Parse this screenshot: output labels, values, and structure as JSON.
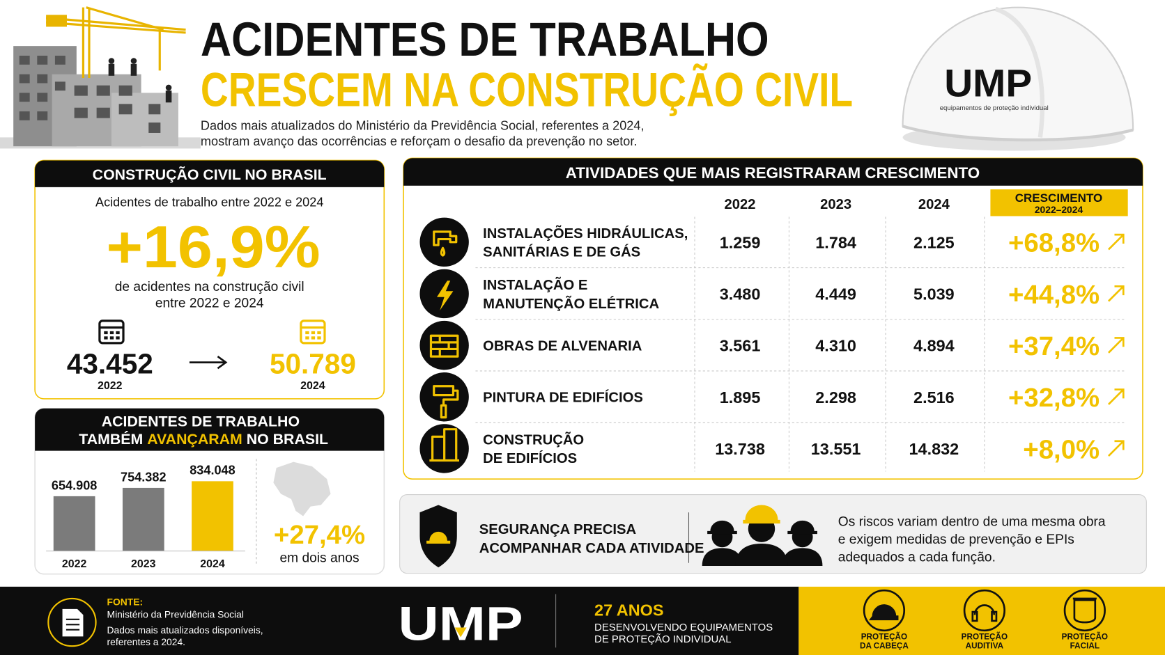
{
  "header": {
    "title_line1": "ACIDENTES DE TRABALHO",
    "title_line2": "CRESCEM NA CONSTRUÇÃO CIVIL",
    "subtitle_line1": "Dados mais atualizados do Ministério da Previdência Social, referentes a 2024,",
    "subtitle_line2": "mostram avanço das ocorrências e reforçam o desafio da prevenção no setor.",
    "helmet_logo": "UMP",
    "helmet_tagline": "equipamentos de proteção individual"
  },
  "brazil_panel": {
    "title": "CONSTRUÇÃO CIVIL NO BRASIL",
    "intro": "Acidentes de trabalho entre 2022 e 2024",
    "growth": "+16,9%",
    "caption_line1": "de acidentes na construção civil",
    "caption_line2": "entre 2022 e 2024",
    "from_value": "43.452",
    "from_year": "2022",
    "to_value": "50.789",
    "to_year": "2024"
  },
  "national_panel": {
    "title_line1": "ACIDENTES DE TRABALHO",
    "title_line2_before": "TAMBÉM ",
    "title_line2_highlight": "AVANÇARAM",
    "title_line2_after": " NO BRASIL",
    "bar_chart": {
      "type": "bar",
      "categories": [
        "2022",
        "2023",
        "2024"
      ],
      "values": [
        654908,
        754382,
        834048
      ],
      "value_labels": [
        "654.908",
        "754.382",
        "834.048"
      ],
      "colors": [
        "#7b7b7b",
        "#7b7b7b",
        "#f2c200"
      ]
    },
    "growth": "+27,4%",
    "growth_caption": "em dois anos"
  },
  "activities_table": {
    "title": "ATIVIDADES QUE MAIS REGISTRARAM CRESCIMENTO",
    "columns": [
      "2022",
      "2023",
      "2024"
    ],
    "growth_header_line1": "CRESCIMENTO",
    "growth_header_line2": "2022–2024",
    "rows": [
      {
        "label_lines": [
          "INSTALAÇÕES HIDRÁULICAS,",
          "SANITÁRIAS E DE GÁS"
        ],
        "values": [
          "1.259",
          "1.784",
          "2.125"
        ],
        "growth": "+68,8%"
      },
      {
        "label_lines": [
          "INSTALAÇÃO E",
          "MANUTENÇÃO ELÉTRICA"
        ],
        "values": [
          "3.480",
          "4.449",
          "5.039"
        ],
        "growth": "+44,8%"
      },
      {
        "label_lines": [
          "OBRAS DE ALVENARIA"
        ],
        "values": [
          "3.561",
          "4.310",
          "4.894"
        ],
        "growth": "+37,4%"
      },
      {
        "label_lines": [
          "PINTURA DE EDIFÍCIOS"
        ],
        "values": [
          "1.895",
          "2.298",
          "2.516"
        ],
        "growth": "+32,8%"
      },
      {
        "label_lines": [
          "CONSTRUÇÃO",
          "DE EDIFÍCIOS"
        ],
        "values": [
          "13.738",
          "13.551",
          "14.832"
        ],
        "growth": "+8,0%"
      }
    ]
  },
  "safety_banner": {
    "title_lines": [
      "SEGURANÇA PRECISA",
      "ACOMPANHAR CADA ATIVIDADE"
    ],
    "text_lines": [
      "Os riscos variam dentro de uma mesma obra",
      "e exigem medidas de prevenção e EPIs",
      "adequados a cada função."
    ]
  },
  "footer": {
    "source_label": "FONTE:",
    "source_name": "Ministério da Previdência Social",
    "source_note_lines": [
      "Dados mais atualizados disponíveis,",
      "referentes a 2024."
    ],
    "logo": "UMP",
    "years": "27 ANOS",
    "tagline_lines": [
      "DESENVOLVENDO EQUIPAMENTOS",
      "DE PROTEÇÃO INDIVIDUAL"
    ],
    "protections": [
      [
        "PROTEÇÃO",
        "DA CABEÇA"
      ],
      [
        "PROTEÇÃO",
        "AUDITIVA"
      ],
      [
        "PROTEÇÃO",
        "FACIAL"
      ]
    ]
  }
}
